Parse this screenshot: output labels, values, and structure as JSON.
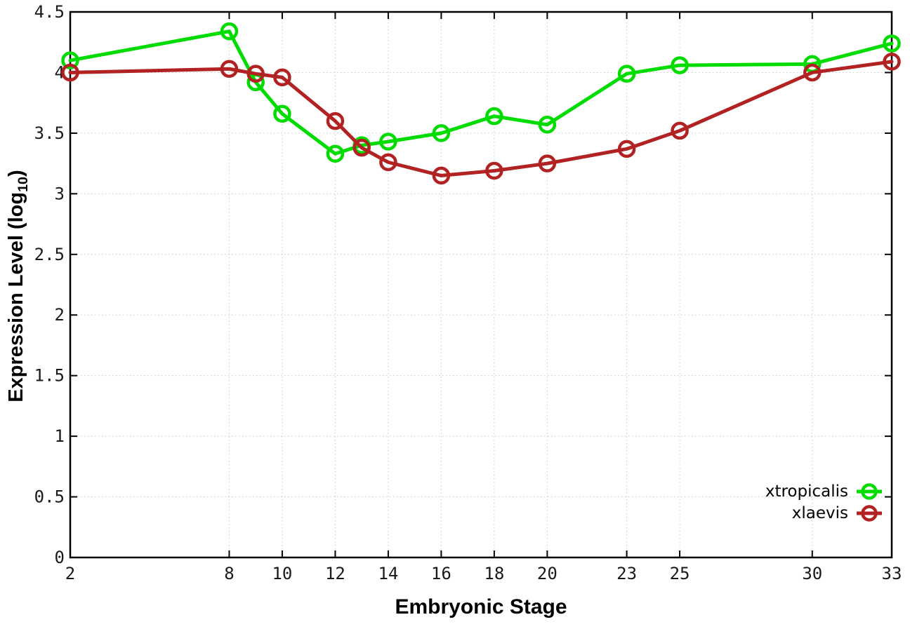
{
  "chart_data": {
    "type": "line",
    "title": "",
    "xlabel": "Embryonic Stage",
    "ylabel": "Expression Level (log10)",
    "ylabel_parts": {
      "pre": "Expression Level (log",
      "sub": "10",
      "post": ")"
    },
    "xlim": [
      2,
      33
    ],
    "ylim": [
      0,
      4.5
    ],
    "xticks": [
      2,
      8,
      10,
      12,
      14,
      16,
      18,
      20,
      23,
      25,
      30,
      33
    ],
    "yticks": [
      "0",
      "0.5",
      "1",
      "1.5",
      "2",
      "2.5",
      "3",
      "3.5",
      "4",
      "4.5"
    ],
    "grid": true,
    "legend_position": "bottom-right-inside",
    "x": [
      2,
      8,
      9,
      10,
      12,
      13,
      14,
      16,
      18,
      20,
      23,
      25,
      30,
      33
    ],
    "series": [
      {
        "name": "xtropicalis",
        "color": "#00dc00",
        "values": [
          4.1,
          4.34,
          3.92,
          3.66,
          3.33,
          3.4,
          3.43,
          3.5,
          3.64,
          3.57,
          3.99,
          4.06,
          4.07,
          4.24
        ]
      },
      {
        "name": "xlaevis",
        "color": "#b22222",
        "values": [
          4.0,
          4.03,
          3.99,
          3.96,
          3.6,
          3.38,
          3.26,
          3.15,
          3.19,
          3.25,
          3.37,
          3.52,
          4.0,
          4.09
        ]
      }
    ],
    "style": {
      "grid_color": "#c8c8c8",
      "axis_color": "#000000",
      "background": "#ffffff"
    }
  }
}
